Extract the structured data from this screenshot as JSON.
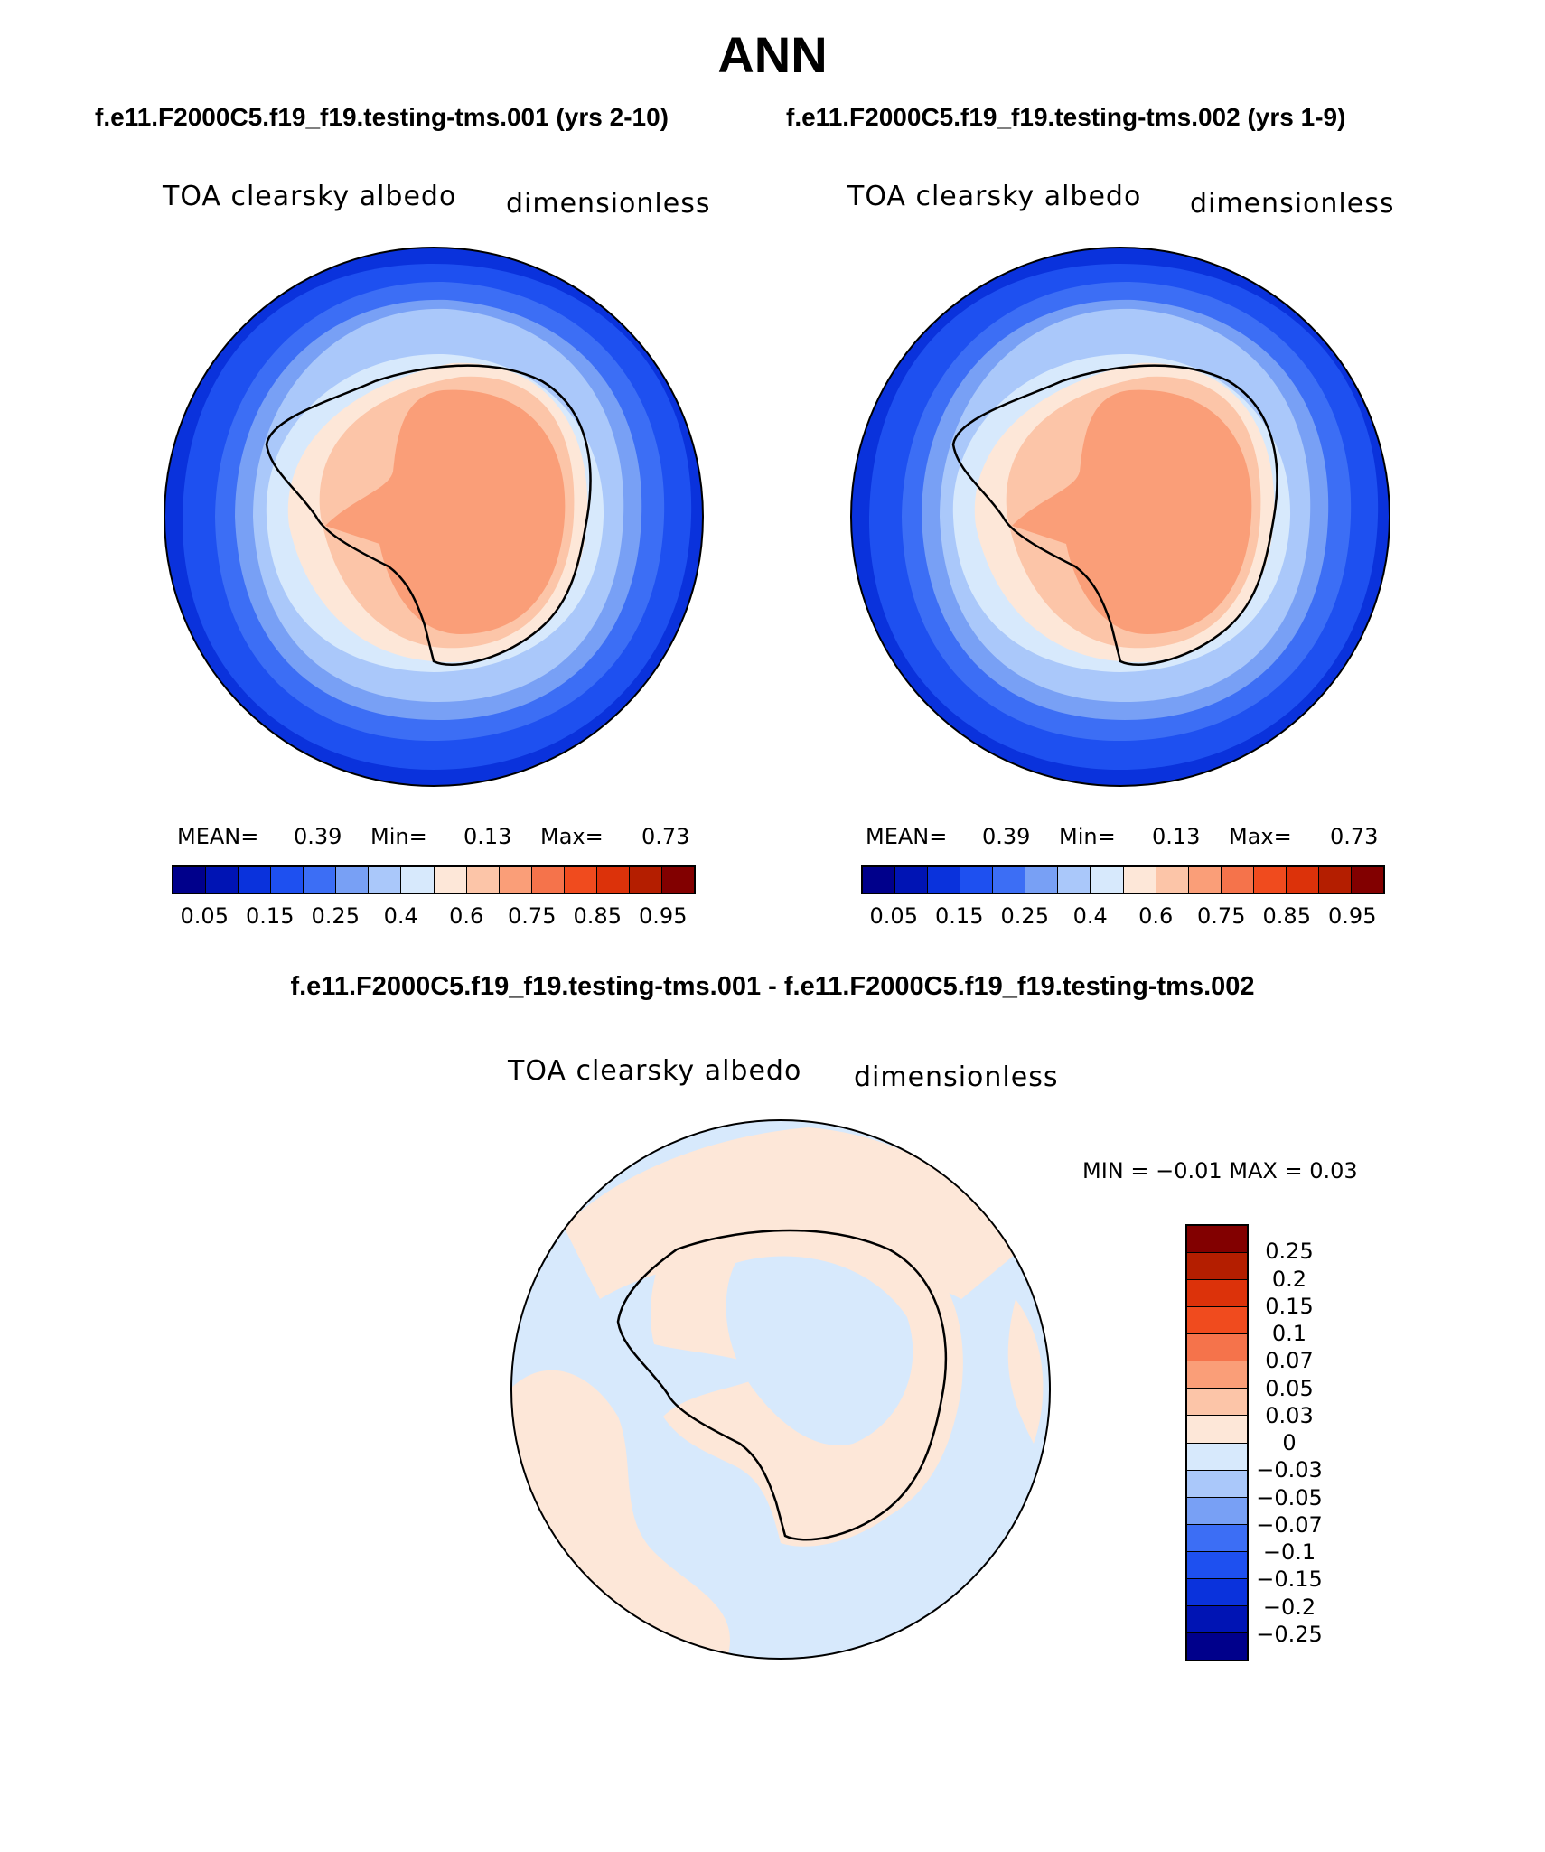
{
  "title": "ANN",
  "subtitles": {
    "left": "f.e11.F2000C5.f19_f19.testing-tms.001 (yrs 2-10)",
    "right": "f.e11.F2000C5.f19_f19.testing-tms.002 (yrs 1-9)",
    "difference": "f.e11.F2000C5.f19_f19.testing-tms.001 - f.e11.F2000C5.f19_f19.testing-tms.002"
  },
  "panels": [
    {
      "variable": "TOA clearsky albedo",
      "units": "dimensionless",
      "mean_label": "MEAN=",
      "mean_value": "0.39",
      "min_label": "Min=",
      "min_value": "0.13",
      "max_label": "Max=",
      "max_value": "0.73"
    },
    {
      "variable": "TOA clearsky albedo",
      "units": "dimensionless",
      "mean_label": "MEAN=",
      "mean_value": "0.39",
      "min_label": "Min=",
      "min_value": "0.13",
      "max_label": "Max=",
      "max_value": "0.73"
    }
  ],
  "difference_panel": {
    "variable": "TOA clearsky albedo",
    "units": "dimensionless",
    "min_max_text": "MIN =   −0.01  MAX =     0.03"
  },
  "colorbar_main": {
    "colors": [
      "#00008b",
      "#0014b4",
      "#0a32dc",
      "#1e50f0",
      "#3c6ef5",
      "#78a0f5",
      "#aac8fa",
      "#d7e9fc",
      "#fde7d8",
      "#fcc5a8",
      "#fa9e78",
      "#f5734b",
      "#f04b1e",
      "#dc320a",
      "#b41e00",
      "#820000"
    ],
    "tick_labels": [
      "0.05",
      "0.15",
      "0.25",
      "0.4",
      "0.6",
      "0.75",
      "0.85",
      "0.95"
    ]
  },
  "colorbar_diff": {
    "colors": [
      "#820000",
      "#b41e00",
      "#dc320a",
      "#f04b1e",
      "#f5734b",
      "#fa9e78",
      "#fcc5a8",
      "#fde7d8",
      "#d7e9fc",
      "#aac8fa",
      "#78a0f5",
      "#3c6ef5",
      "#1e50f0",
      "#0a32dc",
      "#0014b4",
      "#00008b"
    ],
    "tick_labels": [
      "0.25",
      "0.2",
      "0.15",
      "0.1",
      "0.07",
      "0.05",
      "0.03",
      "0",
      "−0.03",
      "−0.05",
      "−0.07",
      "−0.1",
      "−0.15",
      "−0.2",
      "−0.25"
    ]
  }
}
